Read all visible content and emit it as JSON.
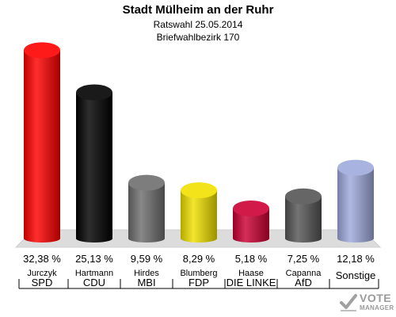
{
  "header": {
    "title": "Stadt Mülheim an der Ruhr",
    "subtitle1": "Ratswahl 25.05.2014",
    "subtitle2": "Briefwahlbezirk 170"
  },
  "logo": {
    "line1": "VOTE",
    "line2": "MANAGER"
  },
  "chart_data": {
    "type": "bar",
    "title": "Stadt Mülheim an der Ruhr",
    "subtitle": "Ratswahl 25.05.2014 / Briefwahlbezirk 170",
    "categories": [
      "SPD",
      "CDU",
      "MBI",
      "FDP",
      "DIE LINKE",
      "AfD",
      "Sonstige"
    ],
    "candidates": [
      "Jurczyk",
      "Hartmann",
      "Hirdes",
      "Blumberg",
      "Haase",
      "Capanna",
      ""
    ],
    "values": [
      32.38,
      25.13,
      9.59,
      8.29,
      5.18,
      7.25,
      12.18
    ],
    "value_labels": [
      "32,38 %",
      "25,13 %",
      "9,59 %",
      "8,29 %",
      "5,18 %",
      "7,25 %",
      "12,18 %"
    ],
    "colors": [
      "#ff0000",
      "#000000",
      "#6e6e6e",
      "#f0e000",
      "#cc0033",
      "#555555",
      "#9faadd"
    ],
    "ylim": [
      0,
      35
    ],
    "grid": false,
    "legend": "none"
  }
}
